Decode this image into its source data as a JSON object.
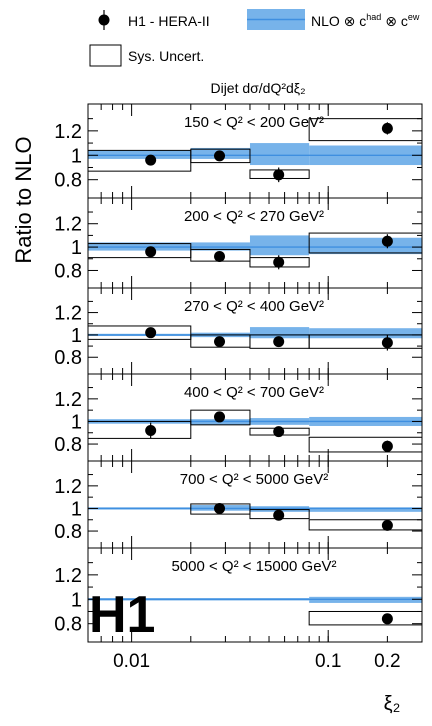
{
  "chart_data": {
    "type": "scatter",
    "subtitle": "Dijet dσ/dQ²dξ₂",
    "ylabel": "Ratio to NLO",
    "xlabel": "ξ₂",
    "xscale": "log",
    "xlim": [
      0.006,
      0.3
    ],
    "ylim": [
      0.65,
      1.42
    ],
    "xticks": [
      {
        "v": 0.01,
        "label": "0.01"
      },
      {
        "v": 0.1,
        "label": "0.1"
      },
      {
        "v": 0.2,
        "label": "0.2"
      }
    ],
    "yticks": [
      {
        "v": 0.8,
        "label": "0.8"
      },
      {
        "v": 1.0,
        "label": "1"
      },
      {
        "v": 1.2,
        "label": "1.2"
      }
    ],
    "legend": {
      "data": "H1 - HERA-II",
      "nlo": "NLO ⊗ c",
      "nlo_sup1": "had",
      "nlo_mid": " ⊗ c",
      "nlo_sup2": "ew",
      "sys": "Sys. Uncert."
    },
    "logo": "H1",
    "colors": {
      "band": "#77b3ea",
      "line": "#3f8fe0",
      "marker": "#000000"
    },
    "panels": [
      {
        "label": "150 < Q² < 200 GeV²",
        "bins": [
          {
            "x0": 0.006,
            "x1": 0.02,
            "xc": 0.0125,
            "y": 0.96,
            "err": 0.01,
            "sys": [
              0.87,
              1.04
            ],
            "nlo": [
              0.97,
              1.04
            ]
          },
          {
            "x0": 0.02,
            "x1": 0.04,
            "xc": 0.028,
            "y": 0.995,
            "err": 0.01,
            "sys": [
              0.94,
              1.05
            ],
            "nlo": [
              0.97,
              1.06
            ]
          },
          {
            "x0": 0.04,
            "x1": 0.08,
            "xc": 0.056,
            "y": 0.84,
            "err": 0.06,
            "sys": [
              0.81,
              0.88
            ],
            "nlo": [
              0.92,
              1.1
            ]
          },
          {
            "x0": 0.08,
            "x1": 0.3,
            "xc": 0.2,
            "y": 1.22,
            "err": 0.05,
            "sys": [
              1.12,
              1.3
            ],
            "nlo": [
              0.92,
              1.08
            ]
          }
        ]
      },
      {
        "label": "200 < Q² < 270 GeV²",
        "bins": [
          {
            "x0": 0.006,
            "x1": 0.02,
            "xc": 0.0125,
            "y": 0.96,
            "err": 0.01,
            "sys": [
              0.91,
              1.03
            ],
            "nlo": [
              0.97,
              1.04
            ]
          },
          {
            "x0": 0.02,
            "x1": 0.04,
            "xc": 0.028,
            "y": 0.92,
            "err": 0.01,
            "sys": [
              0.88,
              0.98
            ],
            "nlo": [
              0.97,
              1.04
            ]
          },
          {
            "x0": 0.04,
            "x1": 0.08,
            "xc": 0.056,
            "y": 0.87,
            "err": 0.06,
            "sys": [
              0.83,
              0.91
            ],
            "nlo": [
              0.93,
              1.1
            ]
          },
          {
            "x0": 0.08,
            "x1": 0.3,
            "xc": 0.2,
            "y": 1.05,
            "err": 0.06,
            "sys": [
              0.95,
              1.12
            ],
            "nlo": [
              0.94,
              1.08
            ]
          }
        ]
      },
      {
        "label": "270 < Q² < 400 GeV²",
        "bins": [
          {
            "x0": 0.006,
            "x1": 0.02,
            "xc": 0.0125,
            "y": 1.02,
            "err": 0.01,
            "sys": [
              0.96,
              1.08
            ],
            "nlo": [
              0.99,
              1.01
            ]
          },
          {
            "x0": 0.02,
            "x1": 0.04,
            "xc": 0.028,
            "y": 0.94,
            "err": 0.01,
            "sys": [
              0.89,
              1.0
            ],
            "nlo": [
              0.98,
              1.02
            ]
          },
          {
            "x0": 0.04,
            "x1": 0.08,
            "xc": 0.056,
            "y": 0.94,
            "err": 0.04,
            "sys": [
              0.88,
              1.0
            ],
            "nlo": [
              0.97,
              1.07
            ]
          },
          {
            "x0": 0.08,
            "x1": 0.3,
            "xc": 0.2,
            "y": 0.93,
            "err": 0.07,
            "sys": [
              0.88,
              1.0
            ],
            "nlo": [
              0.97,
              1.06
            ]
          }
        ]
      },
      {
        "label": "400 < Q² < 700 GeV²",
        "bins": [
          {
            "x0": 0.006,
            "x1": 0.02,
            "xc": 0.0125,
            "y": 0.92,
            "err": 0.07,
            "sys": [
              0.85,
              1.0
            ],
            "nlo": [
              0.98,
              1.02
            ]
          },
          {
            "x0": 0.02,
            "x1": 0.04,
            "xc": 0.028,
            "y": 1.04,
            "err": 0.01,
            "sys": [
              0.97,
              1.1
            ],
            "nlo": [
              0.97,
              1.02
            ]
          },
          {
            "x0": 0.04,
            "x1": 0.08,
            "xc": 0.056,
            "y": 0.91,
            "err": 0.01,
            "sys": [
              0.88,
              0.94
            ],
            "nlo": [
              0.97,
              1.03
            ]
          },
          {
            "x0": 0.08,
            "x1": 0.3,
            "xc": 0.2,
            "y": 0.78,
            "err": 0.05,
            "sys": [
              0.73,
              0.86
            ],
            "nlo": [
              0.96,
              1.04
            ]
          }
        ]
      },
      {
        "label": "700 < Q² < 5000 GeV²",
        "bins": [
          {
            "x0": 0.006,
            "x1": 0.02,
            "xc": null,
            "y": null,
            "err": null,
            "sys": null,
            "nlo": [
              0.99,
              1.01
            ]
          },
          {
            "x0": 0.02,
            "x1": 0.04,
            "xc": 0.028,
            "y": 1.0,
            "err": 0.01,
            "sys": [
              0.95,
              1.04
            ],
            "nlo": [
              0.98,
              1.03
            ]
          },
          {
            "x0": 0.04,
            "x1": 0.08,
            "xc": 0.056,
            "y": 0.94,
            "err": 0.01,
            "sys": [
              0.91,
              0.99
            ],
            "nlo": [
              0.97,
              1.02
            ]
          },
          {
            "x0": 0.08,
            "x1": 0.3,
            "xc": 0.2,
            "y": 0.85,
            "err": 0.01,
            "sys": [
              0.81,
              0.9
            ],
            "nlo": [
              0.97,
              1.01
            ]
          }
        ]
      },
      {
        "label": "5000 < Q² < 15000 GeV²",
        "bins": [
          {
            "x0": 0.006,
            "x1": 0.08,
            "xc": null,
            "y": null,
            "err": null,
            "sys": null,
            "nlo": [
              0.99,
              1.01
            ]
          },
          {
            "x0": 0.08,
            "x1": 0.3,
            "xc": 0.2,
            "y": 0.84,
            "err": 0.03,
            "sys": [
              0.79,
              0.9
            ],
            "nlo": [
              0.97,
              1.02
            ]
          }
        ]
      }
    ]
  }
}
